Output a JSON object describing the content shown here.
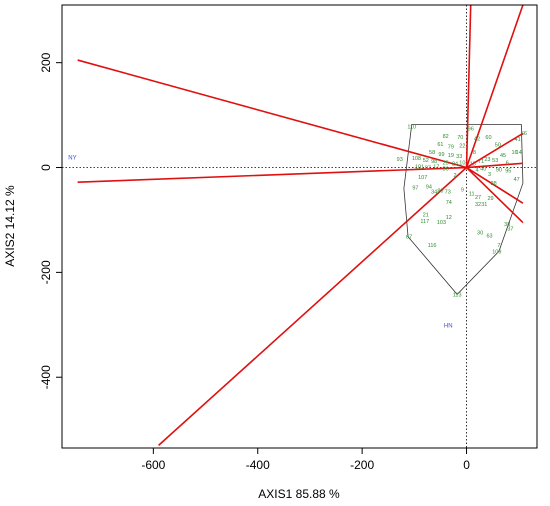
{
  "chart_data": {
    "type": "scatter",
    "title": "",
    "xlabel": "AXIS1 85.88 %",
    "ylabel": "AXIS2 14.12 %",
    "xlim": [
      -775,
      135
    ],
    "ylim": [
      -535,
      310
    ],
    "x_ticks": [
      -600,
      -400,
      -200,
      0
    ],
    "y_ticks": [
      -400,
      -200,
      0,
      200
    ],
    "x_tick_labels": [
      "-600",
      "-400",
      "-200",
      "0"
    ],
    "y_tick_labels": [
      "-400",
      "-200",
      "0",
      "200"
    ],
    "reference_lines": {
      "x": 0,
      "y": 0,
      "style": "dotted"
    },
    "colors": {
      "genotype": "#2e8b2e",
      "environment": "#3a4fd6",
      "vector": "#e01010",
      "hull": "#333333"
    },
    "environments": [
      {
        "label": "NY",
        "x": -755,
        "y": 15
      },
      {
        "label": "HN",
        "x": -35,
        "y": -305
      }
    ],
    "environment_vectors": [
      {
        "x": -745,
        "y": 205
      },
      {
        "x": -745,
        "y": -28
      },
      {
        "x": -590,
        "y": -530
      },
      {
        "x": 8,
        "y": 310
      },
      {
        "x": 108,
        "y": 310
      },
      {
        "x": 108,
        "y": 65
      },
      {
        "x": 108,
        "y": 8
      },
      {
        "x": 108,
        "y": -68
      },
      {
        "x": 108,
        "y": -105
      }
    ],
    "hull": [
      {
        "x": -105,
        "y": 82
      },
      {
        "x": 105,
        "y": 82
      },
      {
        "x": 108,
        "y": -30
      },
      {
        "x": 62,
        "y": -160
      },
      {
        "x": -18,
        "y": -242
      },
      {
        "x": -112,
        "y": -132
      },
      {
        "x": -120,
        "y": -40
      }
    ],
    "genotypes": [
      {
        "label": "110",
        "x": -105,
        "y": 78
      },
      {
        "label": "66",
        "x": 110,
        "y": 66
      },
      {
        "label": "93",
        "x": -128,
        "y": 16
      },
      {
        "label": "82",
        "x": -40,
        "y": 60
      },
      {
        "label": "70",
        "x": -12,
        "y": 58
      },
      {
        "label": "96",
        "x": 8,
        "y": 74
      },
      {
        "label": "42",
        "x": 20,
        "y": 55
      },
      {
        "label": "60",
        "x": 42,
        "y": 58
      },
      {
        "label": "50",
        "x": 60,
        "y": 44
      },
      {
        "label": "41",
        "x": 98,
        "y": 54
      },
      {
        "label": "16",
        "x": 92,
        "y": 30
      },
      {
        "label": "14",
        "x": 100,
        "y": 30
      },
      {
        "label": "61",
        "x": -50,
        "y": 45
      },
      {
        "label": "79",
        "x": -30,
        "y": 40
      },
      {
        "label": "22",
        "x": -8,
        "y": 42
      },
      {
        "label": "8",
        "x": 15,
        "y": 30
      },
      {
        "label": "45",
        "x": 70,
        "y": 24
      },
      {
        "label": "6",
        "x": 78,
        "y": 10
      },
      {
        "label": "58",
        "x": -66,
        "y": 30
      },
      {
        "label": "99",
        "x": -48,
        "y": 26
      },
      {
        "label": "19",
        "x": -30,
        "y": 24
      },
      {
        "label": "33",
        "x": -14,
        "y": 22
      },
      {
        "label": "53",
        "x": 55,
        "y": 14
      },
      {
        "label": "23",
        "x": 40,
        "y": 16
      },
      {
        "label": "108",
        "x": -96,
        "y": 18
      },
      {
        "label": "52",
        "x": -78,
        "y": 14
      },
      {
        "label": "98",
        "x": -62,
        "y": 12
      },
      {
        "label": "25",
        "x": -40,
        "y": 10
      },
      {
        "label": "24",
        "x": -22,
        "y": 8
      },
      {
        "label": "10",
        "x": -8,
        "y": 10
      },
      {
        "label": "15",
        "x": 12,
        "y": 8
      },
      {
        "label": "71",
        "x": 28,
        "y": 12
      },
      {
        "label": "95",
        "x": 80,
        "y": -6
      },
      {
        "label": "90",
        "x": 62,
        "y": -4
      },
      {
        "label": "101",
        "x": -90,
        "y": 2
      },
      {
        "label": "87",
        "x": -74,
        "y": 0
      },
      {
        "label": "17",
        "x": -58,
        "y": 2
      },
      {
        "label": "56",
        "x": -40,
        "y": -2
      },
      {
        "label": "4",
        "x": 20,
        "y": -4
      },
      {
        "label": "40",
        "x": 32,
        "y": -2
      },
      {
        "label": "107",
        "x": -84,
        "y": -18
      },
      {
        "label": "2",
        "x": -22,
        "y": -14
      },
      {
        "label": "3",
        "x": 44,
        "y": -12
      },
      {
        "label": "28",
        "x": 52,
        "y": -30
      },
      {
        "label": "47",
        "x": 96,
        "y": -22
      },
      {
        "label": "97",
        "x": -98,
        "y": -38
      },
      {
        "label": "94",
        "x": -72,
        "y": -36
      },
      {
        "label": "34",
        "x": -62,
        "y": -46
      },
      {
        "label": "80",
        "x": -50,
        "y": -44
      },
      {
        "label": "73",
        "x": -36,
        "y": -46
      },
      {
        "label": "9",
        "x": -8,
        "y": -42
      },
      {
        "label": "11",
        "x": 10,
        "y": -50
      },
      {
        "label": "27",
        "x": 22,
        "y": -56
      },
      {
        "label": "29",
        "x": 46,
        "y": -58
      },
      {
        "label": "74",
        "x": -34,
        "y": -66
      },
      {
        "label": "32",
        "x": 22,
        "y": -70
      },
      {
        "label": "31",
        "x": 34,
        "y": -70
      },
      {
        "label": "21",
        "x": -78,
        "y": -90
      },
      {
        "label": "117",
        "x": -80,
        "y": -102
      },
      {
        "label": "12",
        "x": -34,
        "y": -94
      },
      {
        "label": "103",
        "x": -48,
        "y": -104
      },
      {
        "label": "38",
        "x": 78,
        "y": -108
      },
      {
        "label": "37",
        "x": 84,
        "y": -116
      },
      {
        "label": "30",
        "x": 26,
        "y": -124
      },
      {
        "label": "63",
        "x": 44,
        "y": -130
      },
      {
        "label": "116",
        "x": -66,
        "y": -148
      },
      {
        "label": "7",
        "x": 62,
        "y": -148
      },
      {
        "label": "109",
        "x": 58,
        "y": -160
      },
      {
        "label": "67",
        "x": -110,
        "y": -132
      },
      {
        "label": "113",
        "x": -18,
        "y": -242
      }
    ]
  }
}
